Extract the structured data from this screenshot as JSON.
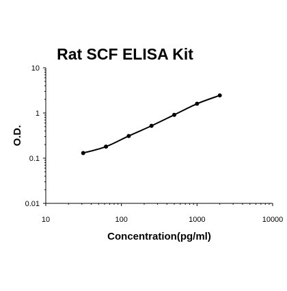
{
  "chart_data": {
    "type": "scatter",
    "title": "Rat SCF ELISA Kit",
    "xlabel": "Concentration(pg/ml)",
    "ylabel": "O.D.",
    "x_scale": "log",
    "y_scale": "log",
    "xlim": [
      10,
      10000
    ],
    "ylim": [
      0.01,
      10
    ],
    "x_ticks": [
      10,
      100,
      1000,
      10000
    ],
    "x_tick_labels": [
      "10",
      "100",
      "1000",
      "10000"
    ],
    "y_ticks": [
      0.01,
      0.1,
      1,
      10
    ],
    "y_tick_labels": [
      "0.01",
      "0.1",
      "1",
      "10"
    ],
    "grid": false,
    "legend": "none",
    "series": [
      {
        "x": [
          31.25,
          62.5,
          125,
          250,
          500,
          1000,
          2000
        ],
        "y": [
          0.13,
          0.18,
          0.31,
          0.52,
          0.91,
          1.6,
          2.45
        ]
      }
    ],
    "fit_curve": true,
    "colors": {
      "marker": "#000000",
      "line": "#000000",
      "axis": "#000000"
    }
  }
}
